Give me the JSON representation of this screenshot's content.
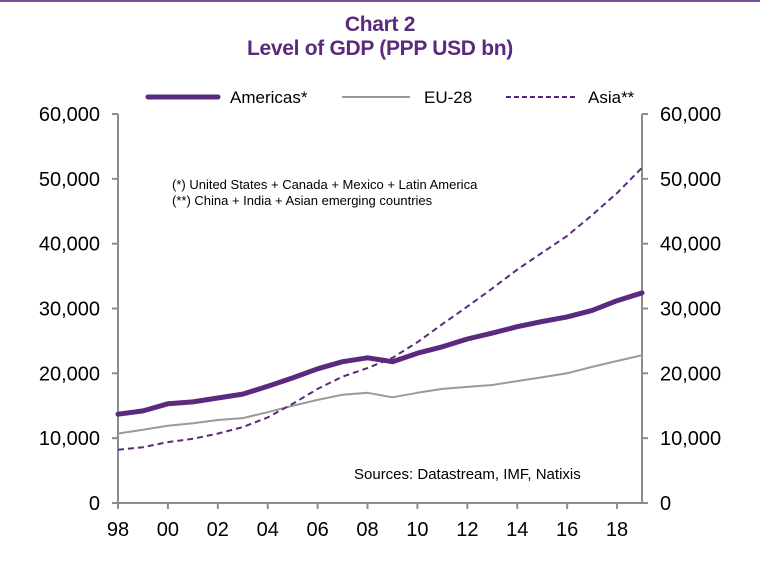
{
  "chart_data": {
    "type": "line",
    "title": "Chart 2",
    "subtitle": "Level of GDP (PPP USD bn)",
    "xlabel": "",
    "ylabel": "",
    "x": [
      1998,
      1999,
      2000,
      2001,
      2002,
      2003,
      2004,
      2005,
      2006,
      2007,
      2008,
      2009,
      2010,
      2011,
      2012,
      2013,
      2014,
      2015,
      2016,
      2017,
      2018,
      2019
    ],
    "x_tick_values": [
      1998,
      2000,
      2002,
      2004,
      2006,
      2008,
      2010,
      2012,
      2014,
      2016,
      2018
    ],
    "x_tick_labels": [
      "98",
      "00",
      "02",
      "04",
      "06",
      "08",
      "10",
      "12",
      "14",
      "16",
      "18"
    ],
    "xlim": [
      1998,
      2019
    ],
    "ylim": [
      0,
      60000
    ],
    "y_ticks": [
      0,
      10000,
      20000,
      30000,
      40000,
      50000,
      60000
    ],
    "y_tick_labels": [
      "0",
      "10,000",
      "20,000",
      "30,000",
      "40,000",
      "50,000",
      "60,000"
    ],
    "y2_tick_labels": [
      "0",
      "10,000",
      "20,000",
      "30,000",
      "40,000",
      "50,000",
      "60,000"
    ],
    "grid": false,
    "legend_position": "top",
    "series": [
      {
        "name": "Americas*",
        "style": "solid-thick",
        "color": "#5b2a7e",
        "values": [
          13700,
          14200,
          15300,
          15600,
          16200,
          16800,
          18000,
          19300,
          20700,
          21800,
          22400,
          21800,
          23100,
          24100,
          25300,
          26200,
          27200,
          28000,
          28700,
          29700,
          31200,
          32400
        ]
      },
      {
        "name": "EU-28",
        "style": "solid-thin",
        "color": "#9a9a9a",
        "values": [
          10700,
          11300,
          11900,
          12300,
          12800,
          13100,
          14000,
          15000,
          15900,
          16700,
          17000,
          16300,
          17000,
          17600,
          17900,
          18200,
          18800,
          19400,
          20000,
          21000,
          21900,
          22800
        ]
      },
      {
        "name": "Asia**",
        "style": "dashed",
        "color": "#5b2a7e",
        "values": [
          8200,
          8600,
          9400,
          9900,
          10700,
          11700,
          13200,
          15300,
          17600,
          19500,
          20800,
          22400,
          24800,
          27600,
          30300,
          33100,
          36000,
          38600,
          41200,
          44400,
          47800,
          51700
        ]
      }
    ],
    "annotations": [
      "(*) United States + Canada + Mexico + Latin America",
      "(**) China + India + Asian emerging countries",
      "Sources:  Datastream,  IMF, Natixis"
    ]
  },
  "colors": {
    "brand": "#5b2a7e",
    "axis": "#8c8c8c"
  }
}
